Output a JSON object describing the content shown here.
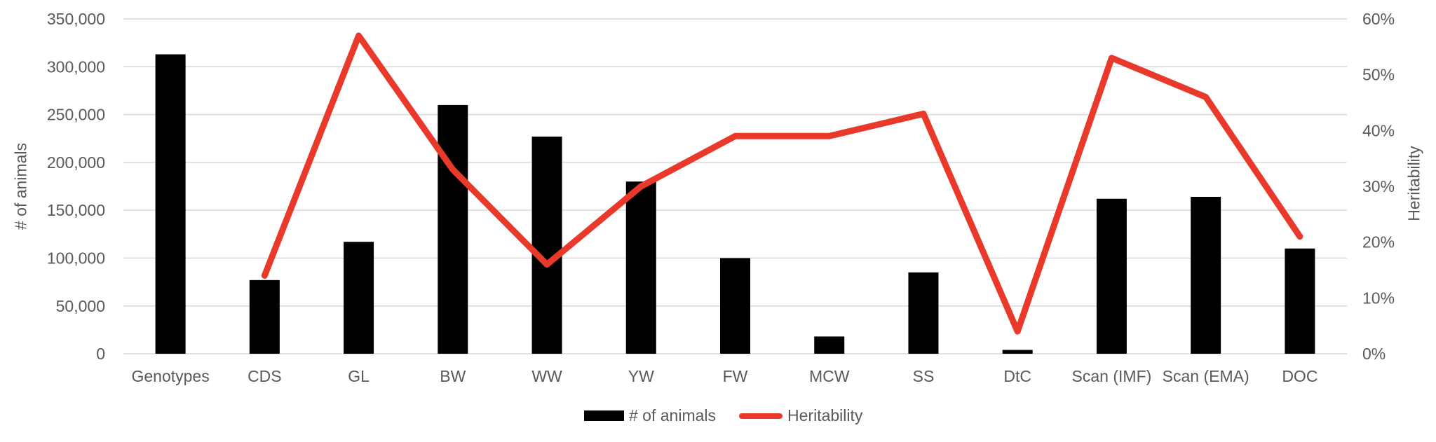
{
  "chart_data": {
    "type": "combo-bar-line",
    "categories": [
      "Genotypes",
      "CDS",
      "GL",
      "BW",
      "WW",
      "YW",
      "FW",
      "MCW",
      "SS",
      "DtC",
      "Scan (IMF)",
      "Scan (EMA)",
      "DOC"
    ],
    "series": [
      {
        "name": "# of animals",
        "type": "bar",
        "axis": "left",
        "color": "#000000",
        "values": [
          313000,
          77000,
          117000,
          260000,
          227000,
          180000,
          100000,
          18000,
          85000,
          4000,
          162000,
          164000,
          110000
        ]
      },
      {
        "name": "Heritability",
        "type": "line",
        "axis": "right",
        "color": "#E8392B",
        "unit": "%",
        "values": [
          null,
          14,
          57,
          33,
          16,
          30,
          39,
          39,
          43,
          4,
          53,
          46,
          21
        ]
      }
    ],
    "left_axis": {
      "title": "# of animals",
      "min": 0,
      "max": 350000,
      "step": 50000,
      "tick_labels": [
        "0",
        "50,000",
        "100,000",
        "150,000",
        "200,000",
        "250,000",
        "300,000",
        "350,000"
      ]
    },
    "right_axis": {
      "title": "Heritability",
      "min": 0,
      "max": 60,
      "step": 10,
      "tick_labels": [
        "0%",
        "10%",
        "20%",
        "30%",
        "40%",
        "50%",
        "60%"
      ]
    },
    "legend": {
      "position": "bottom",
      "entries": [
        "# of animals",
        "Heritability"
      ]
    },
    "grid": true,
    "colors": {
      "bar": "#000000",
      "line": "#E8392B",
      "gridline": "#D9D9D9",
      "text": "#595959",
      "background": "#FFFFFF"
    }
  }
}
